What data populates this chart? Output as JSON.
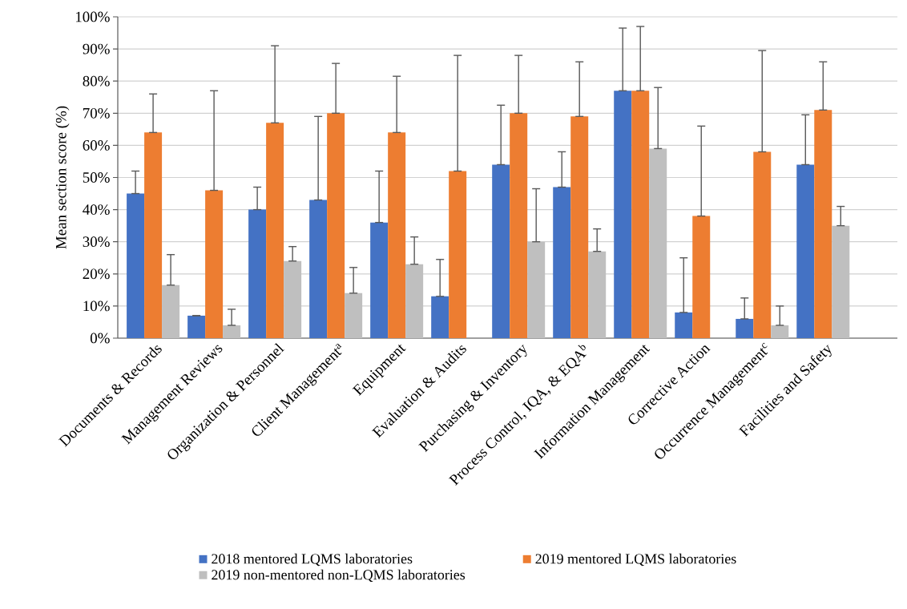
{
  "chart_data": {
    "type": "bar",
    "ylabel": "Mean section score (%)",
    "categories": [
      "Documents & Records",
      "Management Reviews",
      "Organization & Personnel",
      "Client Management$^{a}$",
      "Equipment",
      "Evaluation & Audits",
      "Purchasing & Inventory",
      "Process Control, IQA, & EQA$^{b}$",
      "Information Management",
      "Corrective Action",
      "Occurrence Management$^{c}$",
      "Facilities and Safety"
    ],
    "series": [
      {
        "name": "2018 mentored LQMS laboratories",
        "color": "#4472c4",
        "values": [
          45,
          7,
          40,
          43,
          36,
          13,
          54,
          47,
          77,
          8,
          6,
          54
        ],
        "errors": [
          [
            45,
            52
          ],
          [
            7,
            7
          ],
          [
            40,
            47
          ],
          [
            43,
            69
          ],
          [
            36,
            52
          ],
          [
            13,
            24.5
          ],
          [
            54,
            72.5
          ],
          [
            47,
            58
          ],
          [
            77,
            96.5
          ],
          [
            8,
            25
          ],
          [
            6,
            12.5
          ],
          [
            54,
            69.5
          ]
        ]
      },
      {
        "name": "2019 mentored LQMS laboratories",
        "color": "#ed7d31",
        "values": [
          64,
          46,
          67,
          70,
          64,
          52,
          70,
          69,
          77,
          38,
          58,
          71
        ],
        "errors": [
          [
            64,
            76
          ],
          [
            46,
            77
          ],
          [
            67,
            91
          ],
          [
            70,
            85.5
          ],
          [
            64,
            81.5
          ],
          [
            52,
            88
          ],
          [
            70,
            88
          ],
          [
            69,
            86
          ],
          [
            77,
            97
          ],
          [
            38,
            66
          ],
          [
            58,
            89.5
          ],
          [
            71,
            86
          ]
        ]
      },
      {
        "name": "2019 non-mentored non-LQMS laboratories",
        "color": "#bfbfbf",
        "values": [
          16.5,
          4,
          24,
          14,
          23,
          null,
          30,
          27,
          59,
          null,
          4,
          35
        ],
        "errors": [
          [
            16.5,
            26
          ],
          [
            4,
            9
          ],
          [
            24,
            28.5
          ],
          [
            14,
            22
          ],
          [
            23,
            31.5
          ],
          null,
          [
            30,
            46.5
          ],
          [
            27,
            34
          ],
          [
            59,
            78
          ],
          null,
          [
            4,
            10
          ],
          [
            35,
            41
          ]
        ]
      }
    ],
    "ylim": [
      0,
      100
    ],
    "yticks": [
      {
        "value": 0,
        "label": "0%"
      },
      {
        "value": 10,
        "label": "10%"
      },
      {
        "value": 20,
        "label": "20%"
      },
      {
        "value": 30,
        "label": "30%"
      },
      {
        "value": 40,
        "label": "40%"
      },
      {
        "value": 50,
        "label": "50%"
      },
      {
        "value": 60,
        "label": "60%"
      },
      {
        "value": 70,
        "label": "70%"
      },
      {
        "value": 80,
        "label": "80%"
      },
      {
        "value": 90,
        "label": "90%"
      },
      {
        "value": 100,
        "label": "100%"
      }
    ],
    "grid": "y",
    "legend": "bottom"
  }
}
